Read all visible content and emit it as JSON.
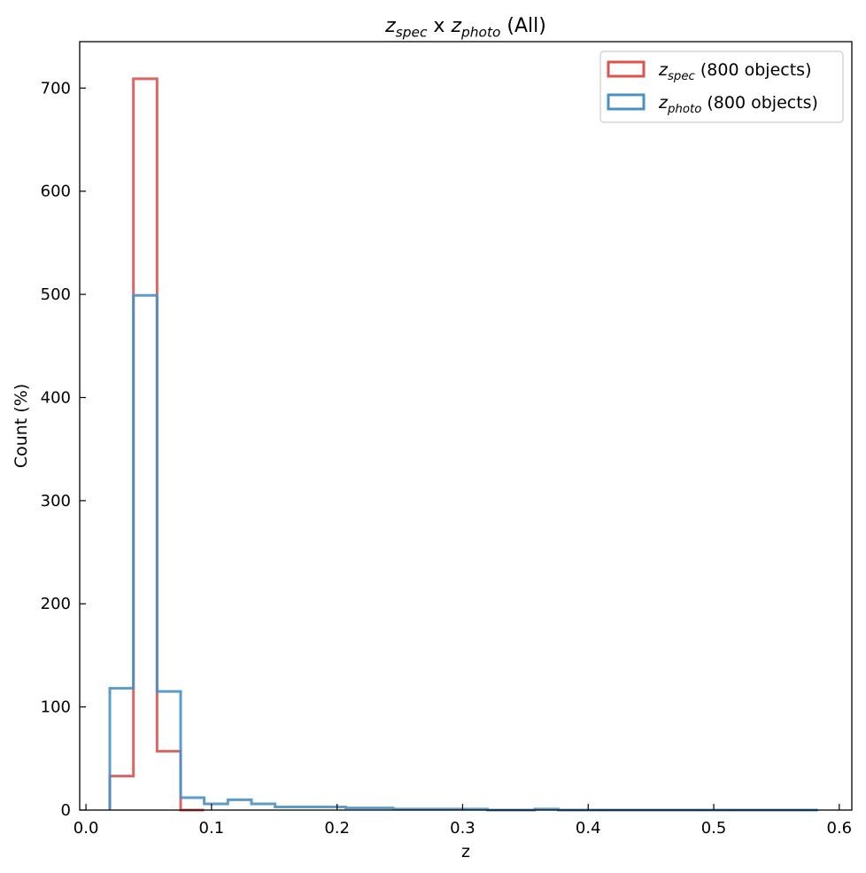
{
  "chart_data": {
    "type": "histogram",
    "title": {
      "parts": [
        {
          "text": "z",
          "style": "italic"
        },
        {
          "text": "spec",
          "style": "sub"
        },
        {
          "text": " x ",
          "style": "normal"
        },
        {
          "text": "z",
          "style": "italic"
        },
        {
          "text": "photo",
          "style": "sub"
        },
        {
          "text": " (All)",
          "style": "normal"
        }
      ]
    },
    "xlabel": "z",
    "ylabel": "Count (%)",
    "xlim": [
      -0.005,
      0.61
    ],
    "ylim": [
      0,
      745
    ],
    "xticks": [
      0.0,
      0.1,
      0.2,
      0.3,
      0.4,
      0.5,
      0.6
    ],
    "xtick_labels": [
      "0.0",
      "0.1",
      "0.2",
      "0.3",
      "0.4",
      "0.5",
      "0.6"
    ],
    "yticks": [
      0,
      100,
      200,
      300,
      400,
      500,
      600,
      700
    ],
    "ytick_labels": [
      "0",
      "100",
      "200",
      "300",
      "400",
      "500",
      "600",
      "700"
    ],
    "grid": false,
    "legend_position": "top-right",
    "series": [
      {
        "name_parts": [
          {
            "text": "z",
            "style": "italic"
          },
          {
            "text": "spec",
            "style": "sub"
          },
          {
            "text": " (800 objects)",
            "style": "normal"
          }
        ],
        "color": "#d9534f",
        "bin_edges": [
          0.019,
          0.0378,
          0.0566,
          0.0754,
          0.0942
        ],
        "counts": [
          33,
          709,
          57,
          0
        ]
      },
      {
        "name_parts": [
          {
            "text": "z",
            "style": "italic"
          },
          {
            "text": "photo",
            "style": "sub"
          },
          {
            "text": " (800 objects)",
            "style": "normal"
          }
        ],
        "color": "#4a90c4",
        "bin_edges": [
          0.019,
          0.0378,
          0.0566,
          0.0754,
          0.0942,
          0.113,
          0.1318,
          0.1506,
          0.1694,
          0.1882,
          0.207,
          0.2258,
          0.2446,
          0.2634,
          0.2822,
          0.301,
          0.3198,
          0.3386,
          0.3574,
          0.3762,
          0.395,
          0.4138,
          0.4326,
          0.4514,
          0.4702,
          0.489,
          0.5078,
          0.5266,
          0.5454,
          0.5642,
          0.583
        ],
        "counts": [
          118,
          499,
          115,
          12,
          6,
          10,
          6,
          3,
          3,
          3,
          2,
          2,
          1,
          1,
          1,
          1,
          0,
          0,
          1,
          0,
          0,
          0,
          0,
          0,
          0,
          0,
          0,
          0,
          0,
          0
        ]
      }
    ]
  }
}
